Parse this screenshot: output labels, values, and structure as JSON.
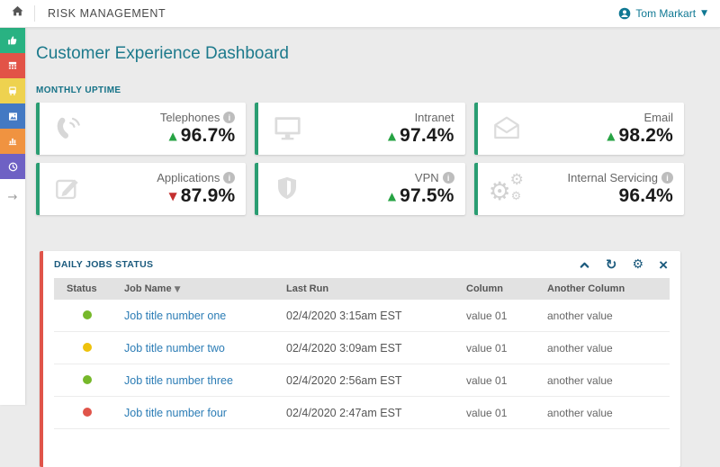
{
  "topbar": {
    "app_title": "RISK MANAGEMENT",
    "user_name": "Tom Markart"
  },
  "sidebar": {
    "items": [
      {
        "name": "thumbs-up",
        "color": "#29b282"
      },
      {
        "name": "table",
        "color": "#e25347"
      },
      {
        "name": "bus",
        "color": "#eed24f"
      },
      {
        "name": "image",
        "color": "#4379c3"
      },
      {
        "name": "bar-chart",
        "color": "#f09340"
      },
      {
        "name": "clock",
        "color": "#6e61c4"
      }
    ]
  },
  "page": {
    "title": "Customer Experience Dashboard"
  },
  "monthly_uptime": {
    "section_label": "MONTHLY UPTIME",
    "cards": [
      {
        "label": "Telephones",
        "value": "96.7%",
        "trend": "up",
        "has_info": true,
        "icon": "phone-icon"
      },
      {
        "label": "Intranet",
        "value": "97.4%",
        "trend": "up",
        "has_info": false,
        "icon": "monitor-icon"
      },
      {
        "label": "Email",
        "value": "98.2%",
        "trend": "up",
        "has_info": false,
        "icon": "envelope-icon"
      },
      {
        "label": "Applications",
        "value": "87.9%",
        "trend": "down",
        "has_info": true,
        "icon": "pencil-icon"
      },
      {
        "label": "VPN",
        "value": "97.5%",
        "trend": "up",
        "has_info": true,
        "icon": "shield-icon"
      },
      {
        "label": "Internal Servicing",
        "value": "96.4%",
        "trend": "none",
        "has_info": true,
        "icon": "gears-icon"
      }
    ]
  },
  "daily_jobs": {
    "panel_title": "DAILY JOBS STATUS",
    "toolbar": [
      "collapse",
      "refresh",
      "settings",
      "close"
    ],
    "columns": [
      "Status",
      "Job Name",
      "Last Run",
      "Column",
      "Another Column"
    ],
    "sorted_column": "Job Name",
    "rows": [
      {
        "status": "green",
        "job_name": "Job title number one",
        "last_run": "02/4/2020 3:15am EST",
        "column": "value 01",
        "another_column": "another value"
      },
      {
        "status": "yellow",
        "job_name": "Job title number two",
        "last_run": "02/4/2020 3:09am EST",
        "column": "value 01",
        "another_column": "another value"
      },
      {
        "status": "green",
        "job_name": "Job title number three",
        "last_run": "02/4/2020 2:56am EST",
        "column": "value 01",
        "another_column": "another value"
      },
      {
        "status": "red",
        "job_name": "Job title number four",
        "last_run": "02/4/2020 2:47am EST",
        "column": "value 01",
        "another_column": "another value"
      }
    ]
  },
  "colors": {
    "accent_teal": "#1d7a8c",
    "user_link": "#0f7893",
    "card_border_green": "#2a9d72",
    "panel_border_red": "#e0544a",
    "panel_header_blue": "#1b5a7d",
    "trend_up_green": "#27a344",
    "trend_down_red": "#c42f2f",
    "job_link_blue": "#2b7cb5",
    "status_green": "#76b82a",
    "status_yellow": "#eec20c",
    "status_red": "#e0544a"
  }
}
